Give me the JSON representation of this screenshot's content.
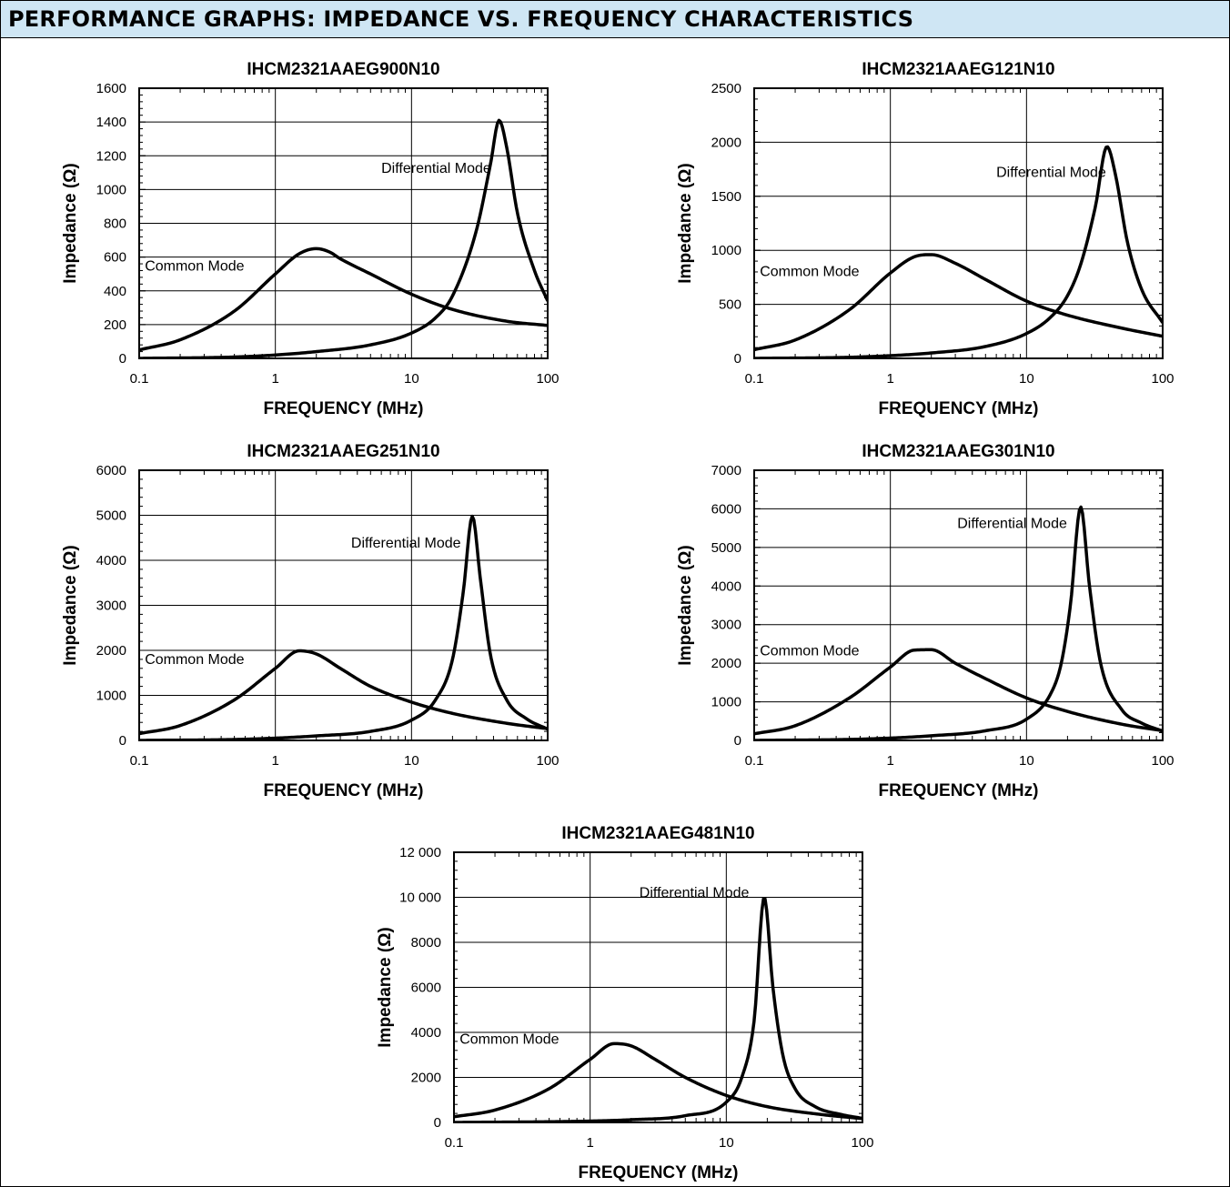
{
  "page": {
    "title": "PERFORMANCE GRAPHS: IMPEDANCE VS. FREQUENCY CHARACTERISTICS"
  },
  "colors": {
    "header_bg": "#cfe6f4",
    "curve": "#000000",
    "grid": "#000000"
  },
  "chart_data": [
    {
      "type": "line",
      "title": "IHCM2321AAEG900N10",
      "xlabel": "FREQUENCY (MHz)",
      "ylabel": "Impedance (Ω)",
      "xscale": "log",
      "xlim": [
        0.1,
        100
      ],
      "ylim": [
        0,
        1600
      ],
      "x_ticks": [
        "0.1",
        "1",
        "10",
        "100"
      ],
      "y_ticks": [
        "0",
        "200",
        "400",
        "600",
        "800",
        "1000",
        "1200",
        "1400",
        "1600"
      ],
      "grid": true,
      "annotations": [
        "Common Mode",
        "Differential Mode"
      ],
      "series": [
        {
          "name": "Common Mode",
          "x": [
            0.1,
            0.2,
            0.5,
            1,
            1.5,
            2,
            2.5,
            3,
            5,
            10,
            20,
            50,
            100
          ],
          "y": [
            50,
            110,
            280,
            500,
            620,
            650,
            630,
            590,
            500,
            380,
            290,
            220,
            195
          ]
        },
        {
          "name": "Differential Mode",
          "x": [
            0.1,
            0.5,
            1,
            2,
            5,
            10,
            15,
            20,
            30,
            38,
            44,
            50,
            60,
            80,
            100
          ],
          "y": [
            0,
            8,
            20,
            40,
            80,
            150,
            240,
            370,
            760,
            1150,
            1410,
            1250,
            860,
            520,
            340
          ]
        }
      ]
    },
    {
      "type": "line",
      "title": "IHCM2321AAEG121N10",
      "xlabel": "FREQUENCY (MHz)",
      "ylabel": "Impedance (Ω)",
      "xscale": "log",
      "xlim": [
        0.1,
        100
      ],
      "ylim": [
        0,
        2500
      ],
      "x_ticks": [
        "0.1",
        "1",
        "10",
        "100"
      ],
      "y_ticks": [
        "0",
        "500",
        "1000",
        "1500",
        "2000",
        "2500"
      ],
      "grid": true,
      "annotations": [
        "Common Mode",
        "Differential Mode"
      ],
      "series": [
        {
          "name": "Common Mode",
          "x": [
            0.1,
            0.2,
            0.5,
            1,
            1.5,
            2,
            3,
            5,
            10,
            20,
            50,
            100
          ],
          "y": [
            80,
            170,
            450,
            790,
            940,
            960,
            880,
            730,
            530,
            400,
            280,
            205
          ]
        },
        {
          "name": "Differential Mode",
          "x": [
            0.1,
            0.5,
            1,
            2,
            5,
            10,
            15,
            20,
            25,
            32,
            39,
            45,
            55,
            70,
            100
          ],
          "y": [
            0,
            10,
            25,
            50,
            110,
            230,
            380,
            580,
            870,
            1400,
            1960,
            1700,
            1080,
            640,
            330
          ]
        }
      ]
    },
    {
      "type": "line",
      "title": "IHCM2321AAEG251N10",
      "xlabel": "FREQUENCY (MHz)",
      "ylabel": "Impedance (Ω)",
      "xscale": "log",
      "xlim": [
        0.1,
        100
      ],
      "ylim": [
        0,
        6000
      ],
      "x_ticks": [
        "0.1",
        "1",
        "10",
        "100"
      ],
      "y_ticks": [
        "0",
        "1000",
        "2000",
        "3000",
        "4000",
        "5000",
        "6000"
      ],
      "grid": true,
      "annotations": [
        "Common Mode",
        "Differential Mode"
      ],
      "series": [
        {
          "name": "Common Mode",
          "x": [
            0.1,
            0.2,
            0.5,
            1,
            1.5,
            2,
            3,
            5,
            10,
            20,
            50,
            100
          ],
          "y": [
            150,
            330,
            900,
            1600,
            1990,
            1920,
            1600,
            1200,
            850,
            600,
            380,
            260
          ]
        },
        {
          "name": "Differential Mode",
          "x": [
            0.1,
            0.5,
            1,
            2,
            5,
            10,
            15,
            20,
            24,
            28,
            32,
            38,
            50,
            70,
            100
          ],
          "y": [
            0,
            20,
            50,
            100,
            200,
            450,
            900,
            1800,
            3300,
            4980,
            3600,
            1900,
            900,
            480,
            250
          ]
        }
      ]
    },
    {
      "type": "line",
      "title": "IHCM2321AAEG301N10",
      "xlabel": "FREQUENCY (MHz)",
      "ylabel": "Impedance (Ω)",
      "xscale": "log",
      "xlim": [
        0.1,
        100
      ],
      "ylim": [
        0,
        7000
      ],
      "x_ticks": [
        "0.1",
        "1",
        "10",
        "100"
      ],
      "y_ticks": [
        "0",
        "1000",
        "2000",
        "3000",
        "4000",
        "5000",
        "6000",
        "7000"
      ],
      "grid": true,
      "annotations": [
        "Common Mode",
        "Differential Mode"
      ],
      "series": [
        {
          "name": "Common Mode",
          "x": [
            0.1,
            0.2,
            0.5,
            1,
            1.5,
            2,
            3,
            5,
            10,
            20,
            50,
            100
          ],
          "y": [
            170,
            380,
            1100,
            1900,
            2340,
            2350,
            2000,
            1600,
            1100,
            750,
            420,
            250
          ]
        },
        {
          "name": "Differential Mode",
          "x": [
            0.1,
            0.5,
            1,
            2,
            5,
            10,
            15,
            18,
            21,
            25,
            29,
            35,
            50,
            70,
            100
          ],
          "y": [
            0,
            25,
            60,
            120,
            250,
            550,
            1200,
            2000,
            3500,
            6050,
            4000,
            2000,
            800,
            450,
            240
          ]
        }
      ]
    },
    {
      "type": "line",
      "title": "IHCM2321AAEG481N10",
      "xlabel": "FREQUENCY (MHz)",
      "ylabel": "Impedance (Ω)",
      "xscale": "log",
      "xlim": [
        0.1,
        100
      ],
      "ylim": [
        0,
        12000
      ],
      "x_ticks": [
        "0.1",
        "1",
        "10",
        "100"
      ],
      "y_ticks": [
        "0",
        "2000",
        "4000",
        "6000",
        "8000",
        "10 000",
        "12 000"
      ],
      "grid": true,
      "annotations": [
        "Common Mode",
        "Differential Mode"
      ],
      "series": [
        {
          "name": "Common Mode",
          "x": [
            0.1,
            0.2,
            0.5,
            1,
            1.5,
            2,
            3,
            5,
            10,
            20,
            50,
            100
          ],
          "y": [
            250,
            550,
            1500,
            2800,
            3500,
            3400,
            2800,
            2000,
            1200,
            700,
            350,
            170
          ]
        },
        {
          "name": "Differential Mode",
          "x": [
            0.1,
            0.5,
            1,
            2,
            5,
            10,
            13,
            16,
            19,
            22,
            26,
            32,
            45,
            70,
            100
          ],
          "y": [
            0,
            30,
            60,
            120,
            300,
            900,
            2000,
            4500,
            10000,
            6000,
            3000,
            1500,
            700,
            350,
            180
          ]
        }
      ]
    }
  ]
}
